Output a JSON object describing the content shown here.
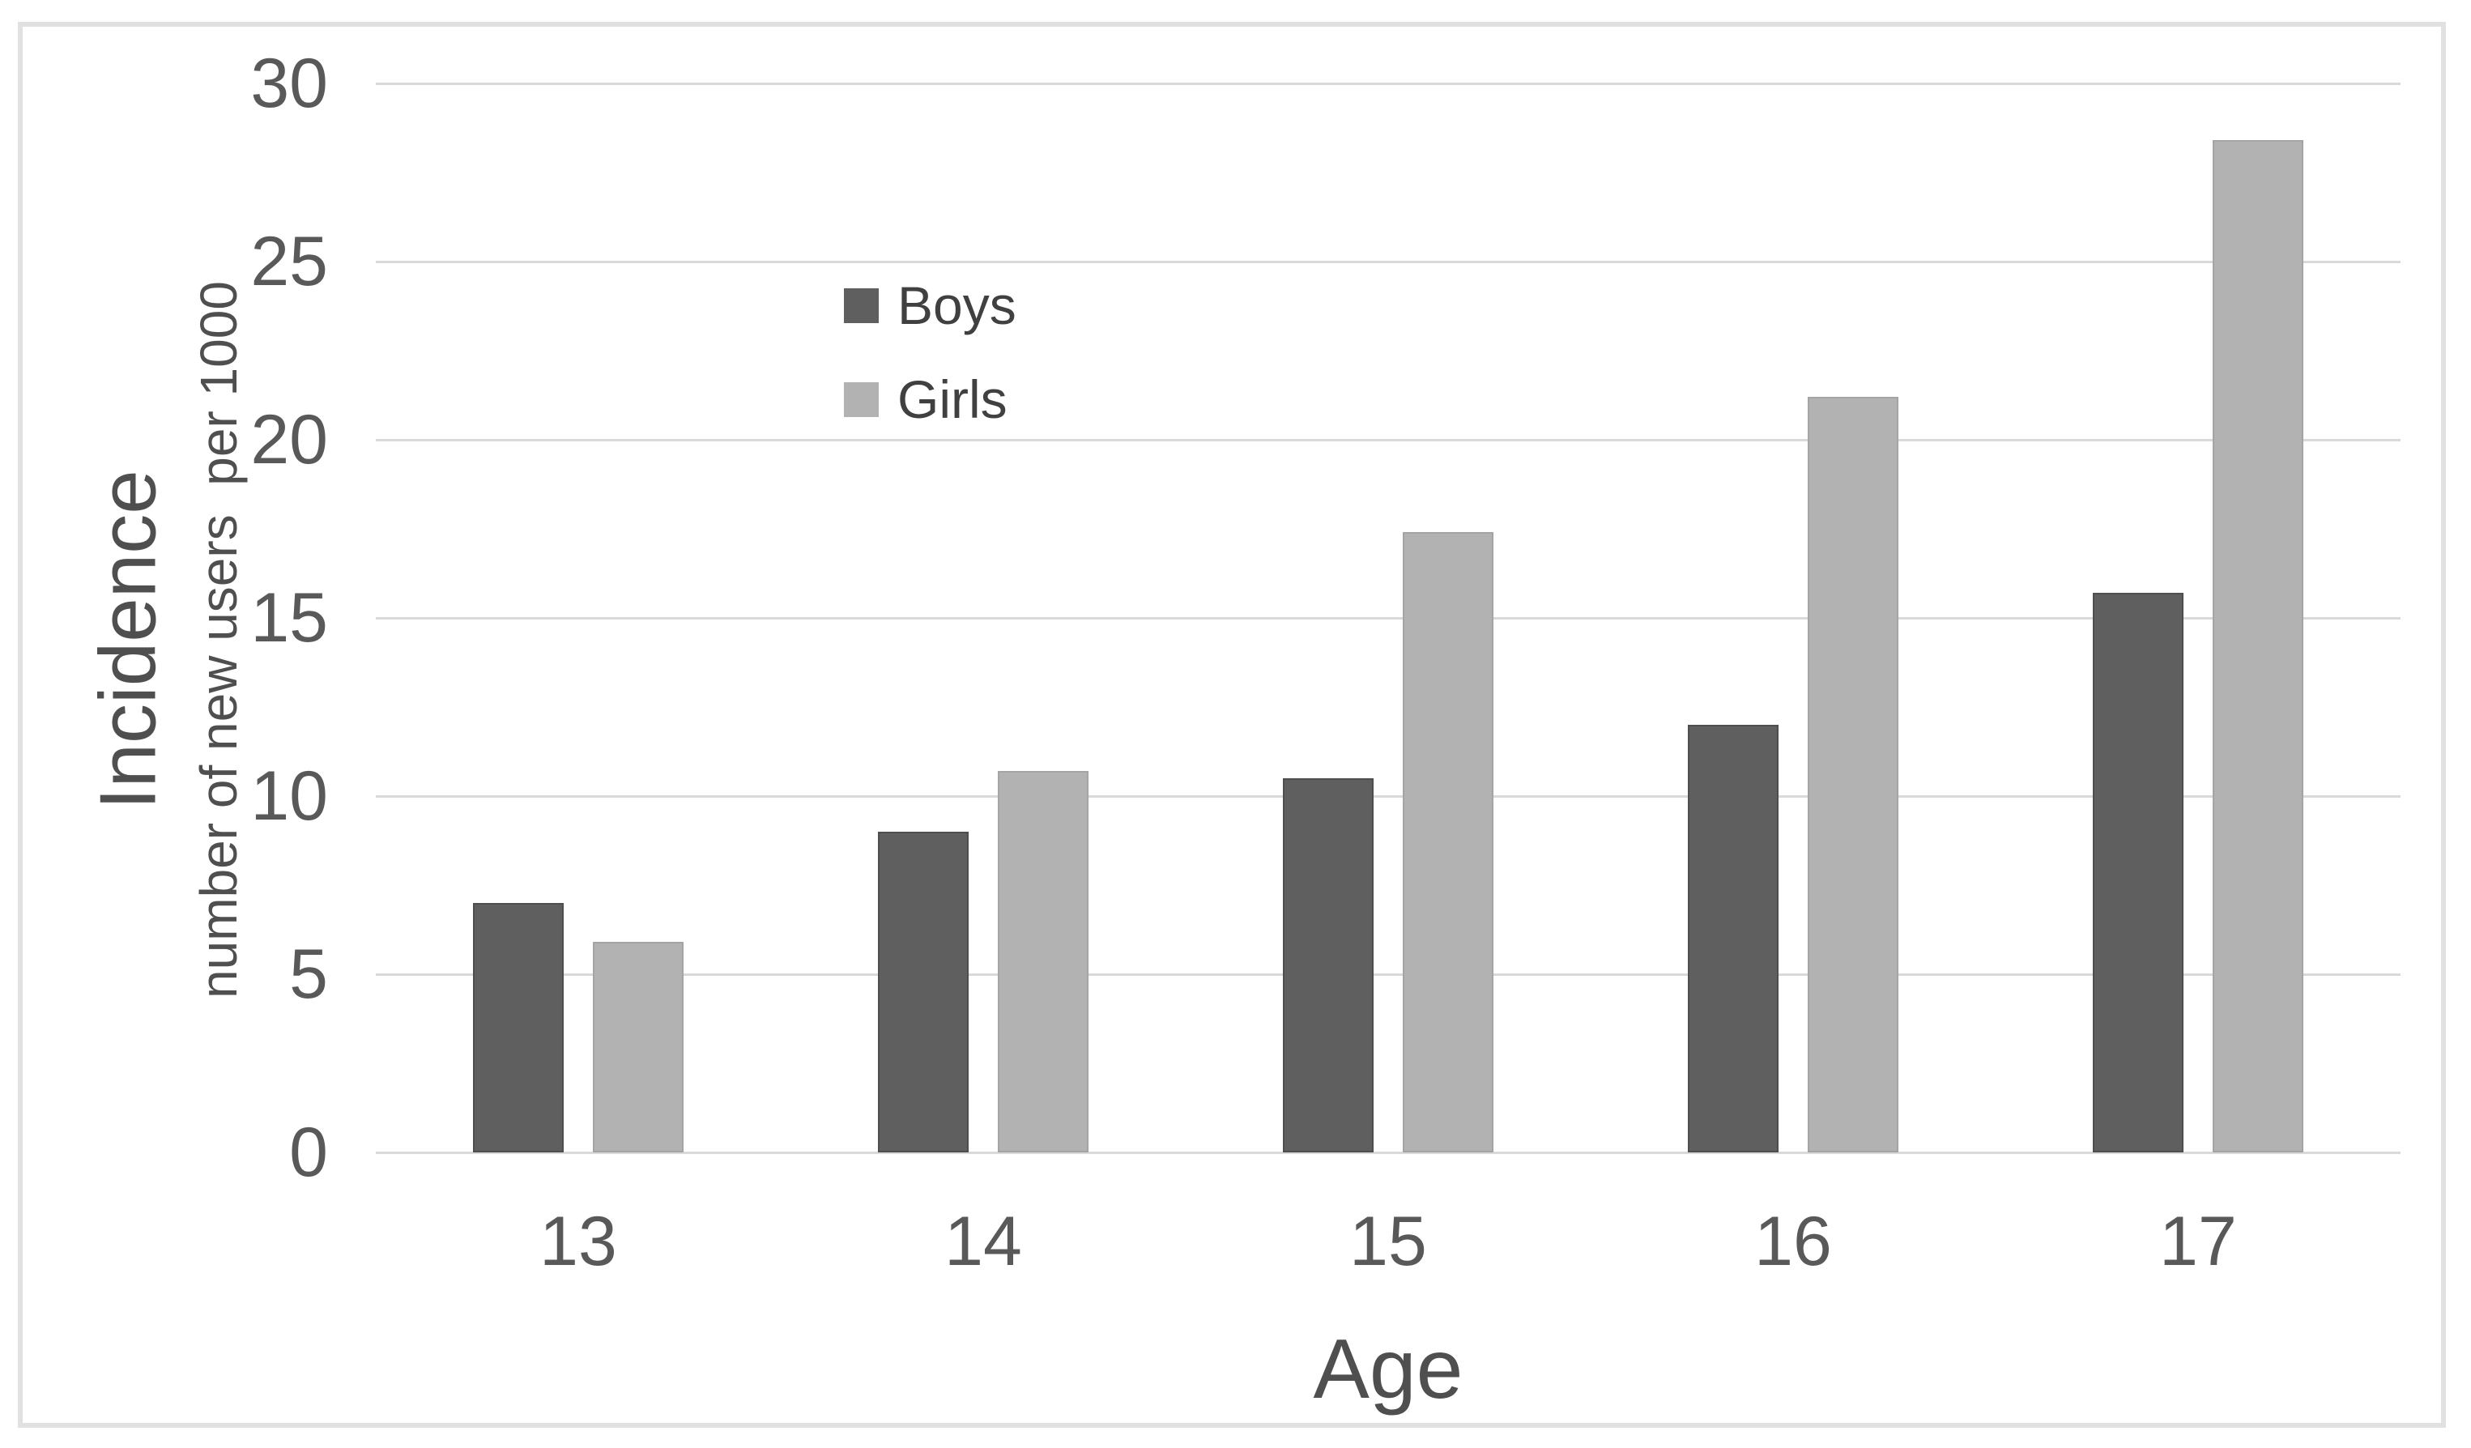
{
  "figure": {
    "background_color": "#ffffff",
    "frame_border_color": "#e1e1e1"
  },
  "chart_data": {
    "type": "bar",
    "title": "",
    "categories": [
      "13",
      "14",
      "15",
      "16",
      "17"
    ],
    "series": [
      {
        "name": "Boys",
        "color": "#5f5f5f",
        "border": "#4e4e4e",
        "values": [
          7.0,
          9.0,
          10.5,
          12.0,
          15.7
        ]
      },
      {
        "name": "Girls",
        "color": "#b2b2b2",
        "border": "#a4a4a4",
        "values": [
          5.9,
          10.7,
          17.4,
          21.2,
          28.4
        ]
      }
    ],
    "xlabel": "Age",
    "ylabel": "Incidence",
    "ylabel_sub": "number of new users  per 1000",
    "ylim": [
      0,
      30
    ],
    "yticks": [
      0,
      5,
      10,
      15,
      20,
      25,
      30
    ],
    "grid": "horizontal",
    "gridline_color": "#d9d9d9",
    "axis_text_color": "#595959",
    "title_text_color": "#4f4f4f",
    "legend_text_color": "#404040",
    "legend_position": "inside-upper-left"
  }
}
